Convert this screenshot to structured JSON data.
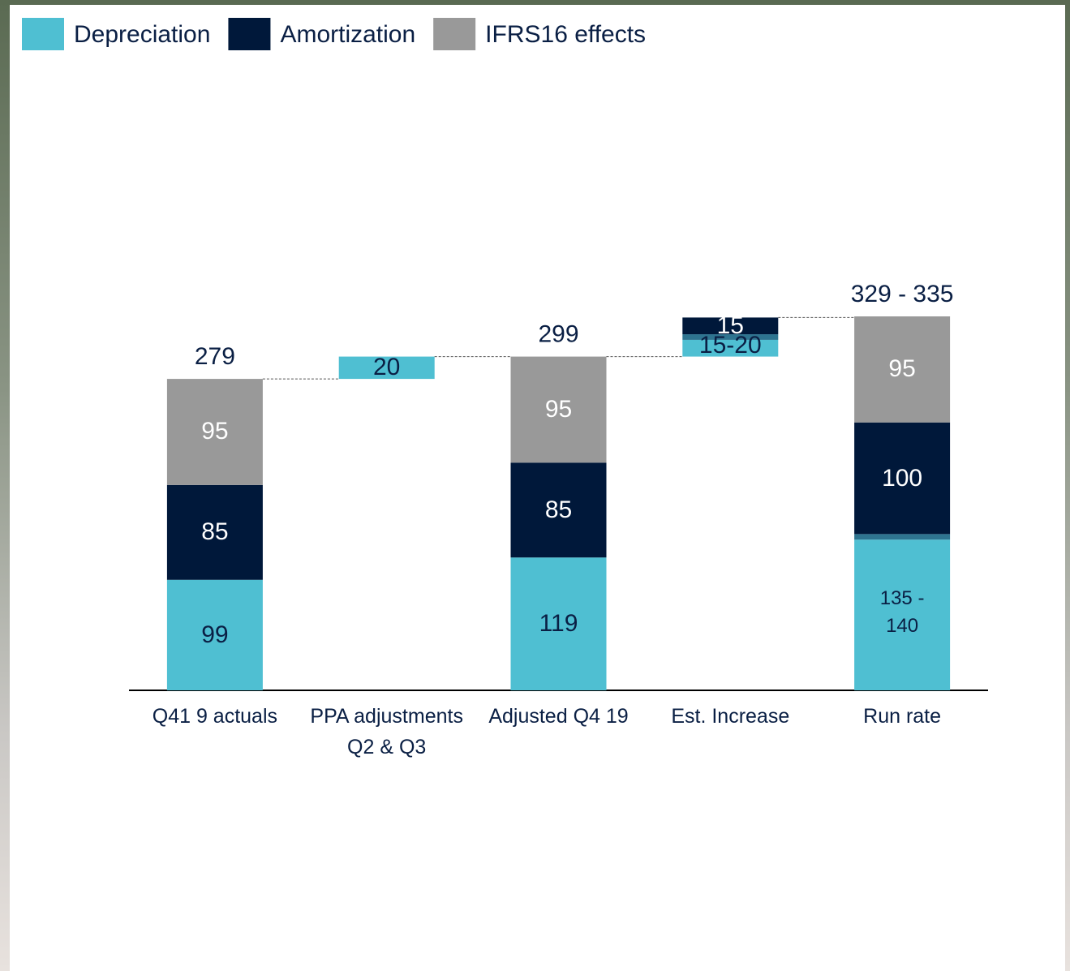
{
  "chart_data": {
    "type": "waterfall",
    "categories": [
      "Q41 9 actuals",
      "PPA adjustments Q2 & Q3",
      "Adjusted Q4 19",
      "Est. Increase",
      "Run rate"
    ],
    "series": [
      {
        "name": "Depreciation",
        "color": "#4fbfd2",
        "values": [
          99,
          20,
          119,
          15,
          135
        ],
        "values_high": [
          null,
          null,
          null,
          20,
          140
        ],
        "value_labels": [
          null,
          null,
          null,
          "15-20",
          "135 - 140"
        ],
        "range_color": "#2e7490"
      },
      {
        "name": "Amortization",
        "color": "#00183a",
        "values": [
          85,
          null,
          85,
          15,
          100
        ]
      },
      {
        "name": "IFRS16 effects",
        "color": "#999999",
        "values": [
          95,
          null,
          95,
          null,
          95
        ]
      }
    ],
    "totals": [
      279,
      null,
      299,
      null,
      329
    ],
    "totals_high": [
      null,
      null,
      null,
      null,
      335
    ],
    "total_labels": [
      null,
      null,
      null,
      null,
      "329 - 335"
    ],
    "ylim": [
      0,
      380
    ],
    "legend": "top-left"
  }
}
